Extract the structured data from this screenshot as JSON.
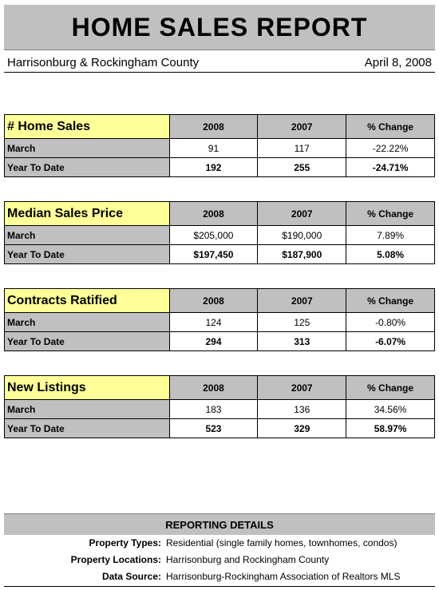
{
  "title": "HOME SALES REPORT",
  "location": "Harrisonburg & Rockingham County",
  "date": "April 8, 2008",
  "sections": [
    {
      "heading": "# Home Sales",
      "col_a": "2008",
      "col_b": "2007",
      "col_c": "% Change",
      "rows": [
        {
          "label": "March",
          "a": "91",
          "b": "117",
          "c": "-22.22%"
        },
        {
          "label": "Year To Date",
          "a": "192",
          "b": "255",
          "c": "-24.71%"
        }
      ]
    },
    {
      "heading": "Median Sales Price",
      "col_a": "2008",
      "col_b": "2007",
      "col_c": "% Change",
      "rows": [
        {
          "label": "March",
          "a": "$205,000",
          "b": "$190,000",
          "c": "7.89%"
        },
        {
          "label": "Year To Date",
          "a": "$197,450",
          "b": "$187,900",
          "c": "5.08%"
        }
      ]
    },
    {
      "heading": "Contracts Ratified",
      "col_a": "2008",
      "col_b": "2007",
      "col_c": "% Change",
      "rows": [
        {
          "label": "March",
          "a": "124",
          "b": "125",
          "c": "-0.80%"
        },
        {
          "label": "Year To Date",
          "a": "294",
          "b": "313",
          "c": "-6.07%"
        }
      ]
    },
    {
      "heading": "New Listings",
      "col_a": "2008",
      "col_b": "2007",
      "col_c": "% Change",
      "rows": [
        {
          "label": "March",
          "a": "183",
          "b": "136",
          "c": "34.56%"
        },
        {
          "label": "Year To Date",
          "a": "523",
          "b": "329",
          "c": "58.97%"
        }
      ]
    }
  ],
  "details": {
    "heading": "REPORTING DETAILS",
    "items": [
      {
        "key": "Property Types:",
        "value": "Residential (single family homes, townhomes, condos)"
      },
      {
        "key": "Property Locations:",
        "value": "Harrisonburg and Rockingham County"
      },
      {
        "key": "Data Source:",
        "value": "Harrisonburg-Rockingham Association of Realtors MLS"
      }
    ]
  },
  "colors": {
    "header_gray": "#c0c0c0",
    "label_yellow": "#ffff99"
  }
}
